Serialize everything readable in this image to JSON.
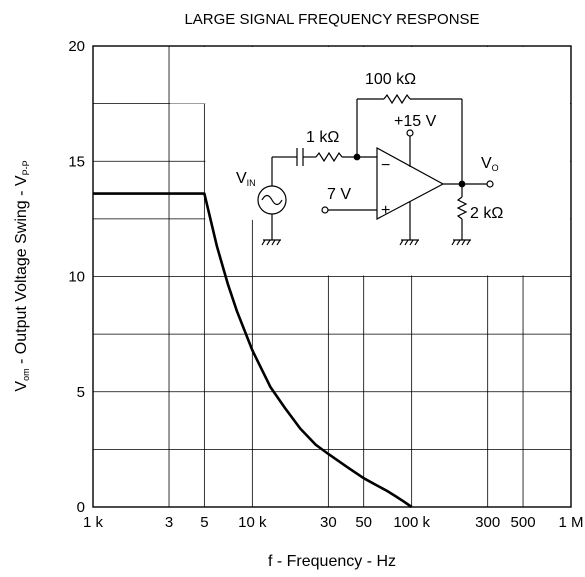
{
  "chart_data": {
    "type": "line",
    "title": "LARGE SIGNAL FREQUENCY RESPONSE",
    "xlabel": "f - Frequency - Hz",
    "ylabel_parts": {
      "v1": "V",
      "v1_sub": "om",
      "mid": " - Output Voltage Swing - V",
      "v2_sub": "P-P"
    },
    "x_scale": "log",
    "xlim": [
      1000,
      1000000
    ],
    "ylim": [
      0,
      20
    ],
    "x_ticks": [
      {
        "value": 1000,
        "label": "1 k"
      },
      {
        "value": 3000,
        "label": "3"
      },
      {
        "value": 5000,
        "label": "5"
      },
      {
        "value": 10000,
        "label": "10 k"
      },
      {
        "value": 30000,
        "label": "30"
      },
      {
        "value": 50000,
        "label": "50"
      },
      {
        "value": 100000,
        "label": "100 k"
      },
      {
        "value": 300000,
        "label": "300"
      },
      {
        "value": 500000,
        "label": "500"
      },
      {
        "value": 1000000,
        "label": "1 M"
      }
    ],
    "y_ticks": [
      {
        "value": 0,
        "label": "0"
      },
      {
        "value": 5,
        "label": "5"
      },
      {
        "value": 10,
        "label": "10"
      },
      {
        "value": 15,
        "label": "15"
      },
      {
        "value": 20,
        "label": "20"
      }
    ],
    "y_minor_ticks": [
      2.5,
      7.5,
      12.5,
      17.5
    ],
    "grid": true,
    "series": [
      {
        "x": [
          1000,
          2000,
          3000,
          4000,
          5000,
          6000,
          7000,
          8000,
          10000,
          13000,
          16000,
          20000,
          25000,
          30000,
          40000,
          50000,
          60000,
          70000,
          80000,
          90000,
          100000
        ],
        "y": [
          13.6,
          13.6,
          13.6,
          13.6,
          13.6,
          11.3,
          9.7,
          8.5,
          6.8,
          5.2,
          4.3,
          3.4,
          2.7,
          2.3,
          1.7,
          1.25,
          0.95,
          0.7,
          0.45,
          0.22,
          0
        ]
      }
    ],
    "inset": {
      "type": "circuit-schematic",
      "labels": {
        "feedback_resistor": "100 kΩ",
        "supply": "+15 V",
        "input_resistor": "1 kΩ",
        "output_node": "V",
        "output_node_sub": "O",
        "input_source": "V",
        "input_source_sub": "IN",
        "bias_voltage": "7 V",
        "load_resistor": "2 kΩ",
        "inverting_input": "−",
        "noninverting_input": "+"
      }
    }
  }
}
